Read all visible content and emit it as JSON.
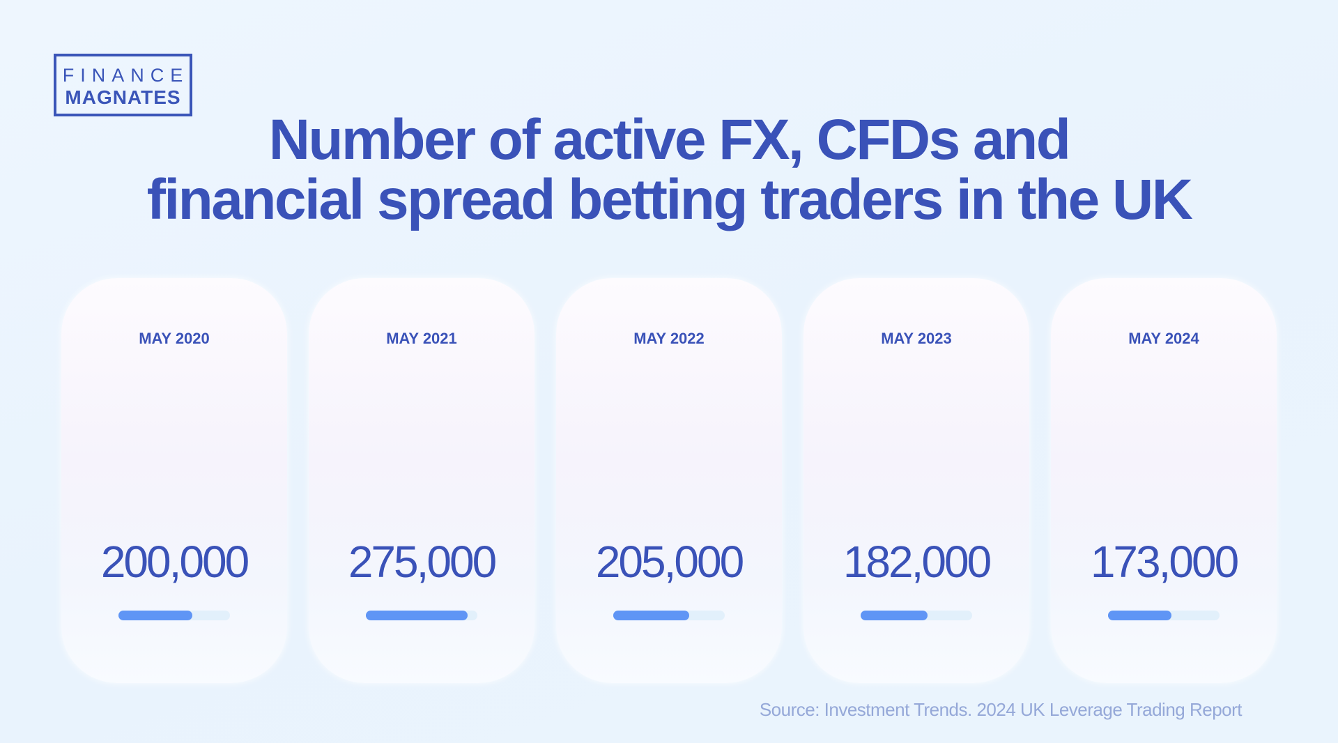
{
  "logo": {
    "line1": "FINANCE",
    "line2": "MAGNATES"
  },
  "title": {
    "line1": "Number of active FX, CFDs and",
    "line2": "financial spread betting traders in the UK"
  },
  "chart_data": {
    "type": "bar",
    "title": "Number of active FX, CFDs and financial spread betting traders in the UK",
    "categories": [
      "MAY 2020",
      "MAY 2021",
      "MAY 2022",
      "MAY 2023",
      "MAY 2024"
    ],
    "value_labels": [
      "200,000",
      "275,000",
      "205,000",
      "182,000",
      "173,000"
    ],
    "values": [
      200000,
      275000,
      205000,
      182000,
      173000
    ],
    "bar_fill_percent": [
      66,
      91,
      68,
      60,
      57
    ],
    "colors": {
      "fill": "#5f95f5",
      "track": "#e2f0fb",
      "text": "#3a52b8"
    }
  },
  "source": "Source: Investment Trends. 2024 UK Leverage Trading Report"
}
